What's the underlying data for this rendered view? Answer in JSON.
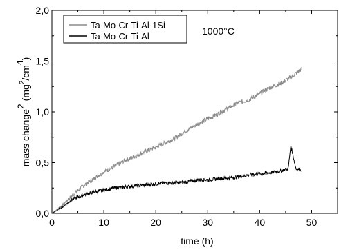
{
  "chart_data": {
    "type": "line",
    "xlabel": "time (h)",
    "ylabel": {
      "main": "mass change",
      "sup1": "2",
      "open": " (mg",
      "sup2": "2",
      "mid": "/cm",
      "sup3": "4",
      "close": ")"
    },
    "xlim": [
      0,
      55
    ],
    "ylim": [
      0,
      2.0
    ],
    "xticks": [
      0,
      10,
      20,
      30,
      40,
      50
    ],
    "yticks": [
      0,
      0.5,
      1.0,
      1.5,
      2.0
    ],
    "xtick_labels": [
      "0",
      "10",
      "20",
      "30",
      "40",
      "50"
    ],
    "ytick_labels": [
      "0,0",
      "0,5",
      "1,0",
      "1,5",
      "2,0"
    ],
    "grid": false,
    "legend_position": "top-left",
    "annotation": "1000°C",
    "series": [
      {
        "name": "Ta-Mo-Cr-Ti-Al-1Si",
        "color": "#8c8c8c",
        "x": [
          0,
          2,
          4,
          6,
          8,
          10,
          12,
          14,
          16,
          18,
          20,
          22,
          24,
          26,
          28,
          30,
          32,
          34,
          36,
          38,
          40,
          42,
          44,
          46,
          48
        ],
        "y": [
          0.0,
          0.08,
          0.18,
          0.27,
          0.34,
          0.41,
          0.46,
          0.52,
          0.56,
          0.61,
          0.65,
          0.7,
          0.75,
          0.82,
          0.88,
          0.93,
          0.98,
          1.04,
          1.09,
          1.12,
          1.18,
          1.24,
          1.28,
          1.34,
          1.42
        ]
      },
      {
        "name": "Ta-Mo-Cr-Ti-Al",
        "color": "#000000",
        "x": [
          0,
          2,
          4,
          6,
          8,
          10,
          12,
          14,
          16,
          18,
          20,
          22,
          24,
          26,
          28,
          30,
          32,
          34,
          36,
          38,
          40,
          42,
          44,
          45.5,
          46,
          47,
          48
        ],
        "y": [
          0.0,
          0.06,
          0.14,
          0.18,
          0.21,
          0.23,
          0.25,
          0.26,
          0.27,
          0.28,
          0.29,
          0.3,
          0.3,
          0.31,
          0.33,
          0.33,
          0.34,
          0.35,
          0.36,
          0.38,
          0.39,
          0.4,
          0.42,
          0.44,
          0.67,
          0.44,
          0.43
        ]
      }
    ]
  }
}
